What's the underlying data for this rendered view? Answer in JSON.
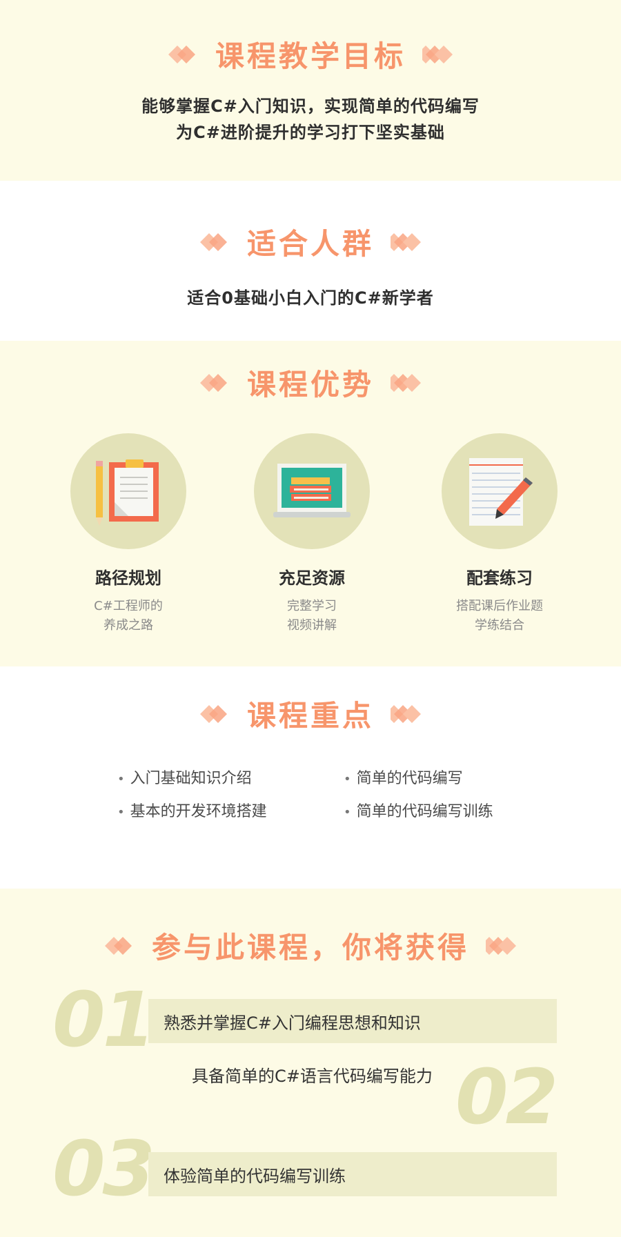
{
  "goals": {
    "title": "课程教学目标",
    "line1": "能够掌握C#入门知识，实现简单的代码编写",
    "line2": "为C#进阶提升的学习打下坚实基础"
  },
  "audience": {
    "title": "适合人群",
    "text": "适合0基础小白入门的C#新学者"
  },
  "advantages": {
    "title": "课程优势",
    "items": [
      {
        "icon": "clipboard-pencil-icon",
        "label": "路径规划",
        "desc1": "C#工程师的",
        "desc2": "养成之路"
      },
      {
        "icon": "laptop-books-icon",
        "label": "充足资源",
        "desc1": "完整学习",
        "desc2": "视频讲解"
      },
      {
        "icon": "notepad-pen-icon",
        "label": "配套练习",
        "desc1": "搭配课后作业题",
        "desc2": "学练结合"
      }
    ]
  },
  "keypoints": {
    "title": "课程重点",
    "items": [
      "入门基础知识介绍",
      "简单的代码编写",
      "基本的开发环境搭建",
      "简单的代码编写训练"
    ]
  },
  "gains": {
    "title": "参与此课程，你将获得",
    "items": [
      {
        "num": "01",
        "text": "熟悉并掌握C#入门编程思想和知识"
      },
      {
        "num": "02",
        "text": "具备简单的C#语言代码编写能力"
      },
      {
        "num": "03",
        "text": "体验简单的代码编写训练"
      }
    ]
  },
  "colors": {
    "accent": "#f7956b",
    "cream": "#fdfbe6",
    "circle": "#e3e2b8",
    "number": "#e2e1b2"
  }
}
